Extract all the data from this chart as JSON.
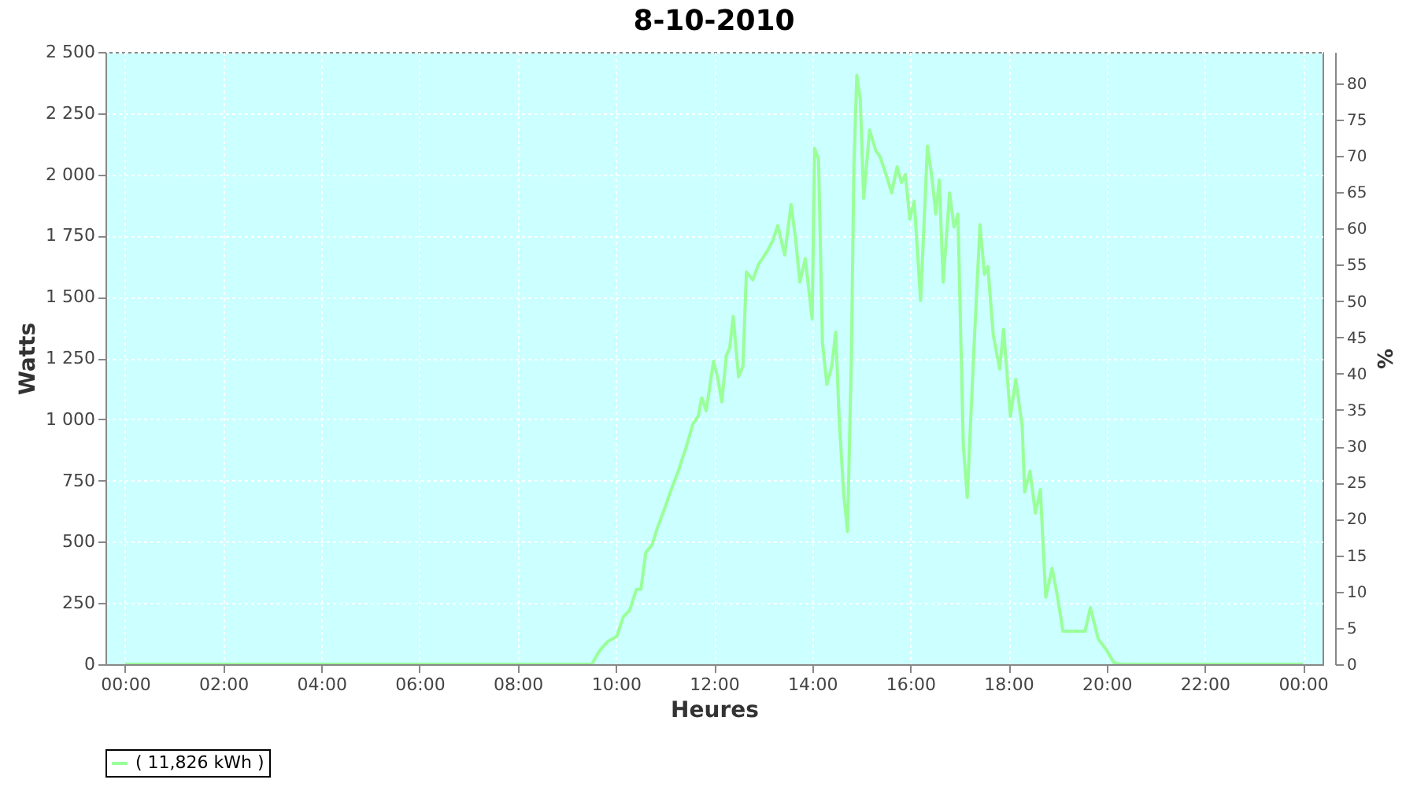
{
  "chart_data": {
    "type": "line",
    "title": "8-10-2010",
    "xlabel": "Heures",
    "ylabel": "Watts",
    "y2label": "%",
    "x": [
      0,
      9.51,
      9.67,
      9.83,
      10.02,
      10.15,
      10.28,
      10.42,
      10.51,
      10.61,
      10.74,
      10.84,
      10.98,
      11.11,
      11.27,
      11.43,
      11.57,
      11.68,
      11.75,
      11.84,
      11.99,
      12.07,
      12.16,
      12.25,
      12.32,
      12.39,
      12.5,
      12.59,
      12.66,
      12.79,
      12.91,
      13.09,
      13.2,
      13.3,
      13.44,
      13.57,
      13.66,
      13.75,
      13.86,
      14.0,
      14.05,
      14.13,
      14.21,
      14.3,
      14.4,
      14.48,
      14.55,
      14.64,
      14.72,
      14.8,
      14.85,
      14.91,
      14.98,
      15.05,
      15.17,
      15.3,
      15.38,
      15.49,
      15.62,
      15.73,
      15.82,
      15.9,
      15.99,
      16.08,
      16.21,
      16.35,
      16.44,
      16.52,
      16.59,
      16.67,
      16.8,
      16.89,
      16.97,
      17.08,
      17.16,
      17.29,
      17.42,
      17.51,
      17.58,
      17.69,
      17.82,
      17.9,
      18.04,
      18.15,
      18.28,
      18.33,
      18.44,
      18.55,
      18.65,
      18.76,
      18.89,
      19.0,
      19.11,
      19.56,
      19.67,
      19.83,
      19.99,
      20.15,
      20.31,
      24
    ],
    "series": [
      {
        "name": "( 11,826 kWh )",
        "color": "#99ff99",
        "values": [
          0,
          0,
          56,
          92,
          114,
          193,
          220,
          306,
          306,
          456,
          488,
          553,
          628,
          703,
          788,
          885,
          981,
          1013,
          1088,
          1035,
          1238,
          1174,
          1071,
          1260,
          1292,
          1420,
          1174,
          1217,
          1602,
          1570,
          1634,
          1688,
          1731,
          1791,
          1671,
          1877,
          1741,
          1560,
          1656,
          1409,
          2106,
          2063,
          1313,
          1142,
          1217,
          1356,
          1003,
          703,
          542,
          1260,
          2031,
          2405,
          2309,
          1902,
          2181,
          2095,
          2074,
          2010,
          1924,
          2031,
          1967,
          1999,
          1817,
          1891,
          1485,
          2116,
          1988,
          1838,
          1977,
          1560,
          1924,
          1785,
          1838,
          895,
          681,
          1260,
          1795,
          1592,
          1624,
          1345,
          1206,
          1367,
          1013,
          1163,
          970,
          703,
          788,
          617,
          713,
          274,
          392,
          274,
          135,
          135,
          231,
          103,
          60,
          6,
          0,
          0
        ]
      }
    ],
    "xlim": [
      -0.4,
      24.4
    ],
    "xticks": [
      {
        "value": 0,
        "label": "00:00"
      },
      {
        "value": 2,
        "label": "02:00"
      },
      {
        "value": 4,
        "label": "04:00"
      },
      {
        "value": 6,
        "label": "06:00"
      },
      {
        "value": 8,
        "label": "08:00"
      },
      {
        "value": 10,
        "label": "10:00"
      },
      {
        "value": 12,
        "label": "12:00"
      },
      {
        "value": 14,
        "label": "14:00"
      },
      {
        "value": 16,
        "label": "16:00"
      },
      {
        "value": 18,
        "label": "18:00"
      },
      {
        "value": 20,
        "label": "20:00"
      },
      {
        "value": 22,
        "label": "22:00"
      },
      {
        "value": 24,
        "label": "00:00"
      }
    ],
    "ylim": [
      0,
      2500
    ],
    "yticks": [
      0,
      250,
      500,
      750,
      {
        "value": 1000,
        "label": "1 000"
      },
      {
        "value": 1250,
        "label": "1 250"
      },
      {
        "value": 1500,
        "label": "1 500"
      },
      {
        "value": 1750,
        "label": "1 750"
      },
      {
        "value": 2000,
        "label": "2 000"
      },
      {
        "value": 2250,
        "label": "2 250"
      },
      {
        "value": 2500,
        "label": "2 500"
      }
    ],
    "y2lim": [
      0,
      84.3
    ],
    "y2ticks": [
      0,
      5,
      10,
      15,
      20,
      25,
      30,
      35,
      40,
      45,
      50,
      55,
      60,
      65,
      70,
      75,
      80
    ],
    "grid": true,
    "legend": "bottom",
    "line_style": "solid"
  }
}
